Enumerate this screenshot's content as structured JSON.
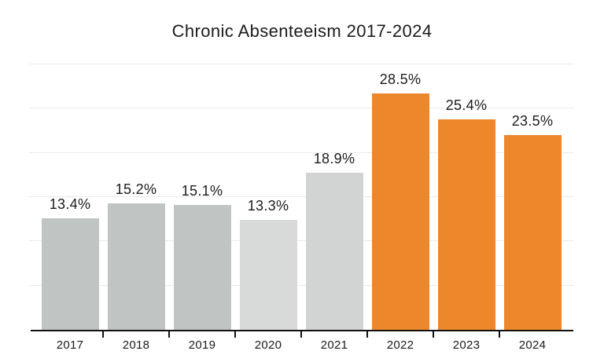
{
  "page": {
    "background_color": "#ffffff",
    "text_color": "#1b1b1b"
  },
  "chart_data": {
    "type": "bar",
    "title": "Chronic Absenteeism 2017-2024",
    "xlabel": "",
    "ylabel": "",
    "categories": [
      "2017",
      "2018",
      "2019",
      "2020",
      "2021",
      "2022",
      "2023",
      "2024"
    ],
    "values": [
      13.4,
      15.2,
      15.1,
      13.3,
      18.9,
      28.5,
      25.4,
      23.5
    ],
    "value_labels": [
      "13.4%",
      "15.2%",
      "15.1%",
      "13.3%",
      "18.9%",
      "28.5%",
      "25.4%",
      "23.5%"
    ],
    "bar_colors": [
      "#c0c4c2",
      "#c0c4c2",
      "#c0c4c2",
      "#d8d9d9",
      "#d2d4d4",
      "#ed872c",
      "#ed872c",
      "#ed872c"
    ],
    "ylim": [
      0,
      32
    ],
    "gridlines": {
      "count": 6,
      "color": "#ebebeb",
      "visible": true
    },
    "axis_color": "#111111",
    "label_color": "#1b1b1b",
    "legend_position": "none"
  }
}
